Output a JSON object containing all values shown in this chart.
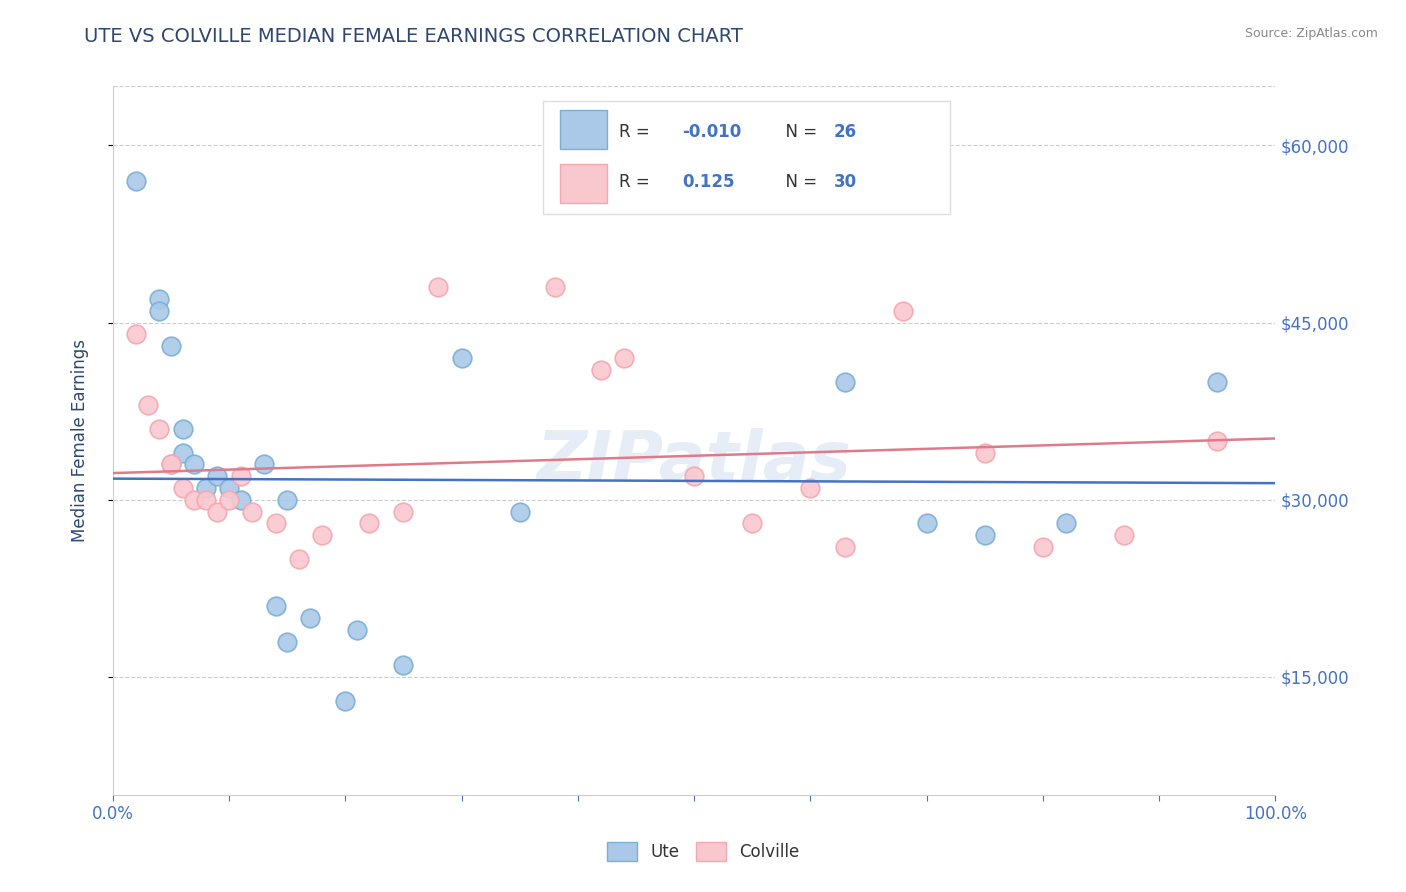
{
  "title": "UTE VS COLVILLE MEDIAN FEMALE EARNINGS CORRELATION CHART",
  "source": "Source: ZipAtlas.com",
  "ylabel": "Median Female Earnings",
  "yticks": [
    15000,
    30000,
    45000,
    60000
  ],
  "ytick_labels": [
    "$15,000",
    "$30,000",
    "$45,000",
    "$60,000"
  ],
  "ylim": [
    5000,
    65000
  ],
  "xlim": [
    0.0,
    1.0
  ],
  "background_color": "#ffffff",
  "grid_color": "#cccccc",
  "title_color": "#2c4770",
  "axis_label_color": "#2c4770",
  "tick_label_color": "#4472c4",
  "watermark": "ZIPatlas",
  "ute_color": "#aac9e8",
  "ute_edge_color": "#7bafd4",
  "colville_color": "#f9c8cf",
  "colville_edge_color": "#f4a7b0",
  "ute_R": -0.01,
  "ute_N": 26,
  "colville_R": 0.125,
  "colville_N": 30,
  "ute_line_color": "#4472c4",
  "colville_line_color": "#e07a8a",
  "ute_x": [
    0.02,
    0.04,
    0.04,
    0.05,
    0.06,
    0.06,
    0.07,
    0.08,
    0.09,
    0.1,
    0.11,
    0.13,
    0.14,
    0.15,
    0.15,
    0.17,
    0.2,
    0.21,
    0.25,
    0.3,
    0.35,
    0.63,
    0.7,
    0.75,
    0.82,
    0.95
  ],
  "ute_y": [
    57000,
    47000,
    46000,
    43000,
    36000,
    34000,
    33000,
    31000,
    32000,
    31000,
    30000,
    33000,
    21000,
    18000,
    30000,
    20000,
    13000,
    19000,
    16000,
    42000,
    29000,
    40000,
    28000,
    27000,
    28000,
    40000
  ],
  "colville_x": [
    0.02,
    0.03,
    0.04,
    0.05,
    0.05,
    0.06,
    0.07,
    0.08,
    0.09,
    0.1,
    0.11,
    0.12,
    0.14,
    0.16,
    0.18,
    0.22,
    0.25,
    0.28,
    0.38,
    0.42,
    0.44,
    0.5,
    0.55,
    0.6,
    0.63,
    0.68,
    0.75,
    0.8,
    0.87,
    0.95
  ],
  "colville_y": [
    44000,
    38000,
    36000,
    33000,
    33000,
    31000,
    30000,
    30000,
    29000,
    30000,
    32000,
    29000,
    28000,
    25000,
    27000,
    28000,
    29000,
    48000,
    48000,
    41000,
    42000,
    32000,
    28000,
    31000,
    26000,
    46000,
    34000,
    26000,
    27000,
    35000
  ],
  "marker_size": 180,
  "line_width": 1.8,
  "legend_label_color": "#4472c4",
  "legend_R_ute_color": "#e07a8a",
  "legend_R_colville_color": "#e07a8a"
}
